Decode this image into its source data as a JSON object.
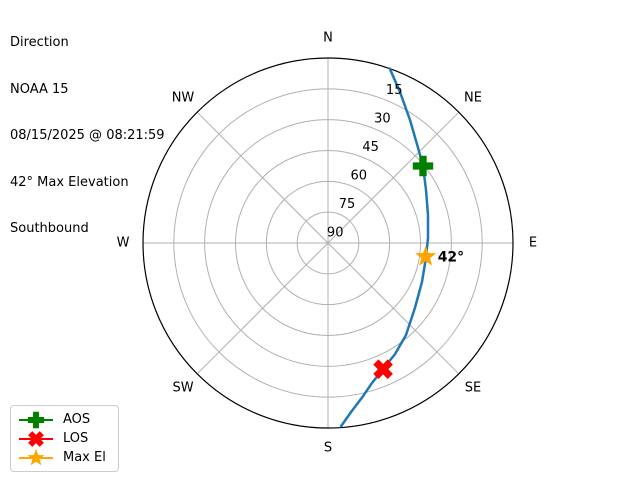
{
  "header": {
    "lines": [
      "Direction",
      "NOAA 15",
      "08/15/2025 @ 08:21:59",
      "42° Max Elevation",
      "Southbound"
    ]
  },
  "legend": {
    "items": [
      {
        "label": "AOS",
        "marker": "plus",
        "color": "#008000"
      },
      {
        "label": "LOS",
        "marker": "x",
        "color": "#ff0000"
      },
      {
        "label": "Max El",
        "marker": "star",
        "color": "#ffa500"
      }
    ]
  },
  "chart_data": {
    "type": "polar_sky_track",
    "title": "Direction",
    "satellite": "NOAA 15",
    "timestamp": "08/15/2025 @ 08:21:59",
    "max_elevation_deg": 42,
    "pass_heading": "Southbound",
    "max_el_annotation": "42°",
    "compass_labels": [
      "N",
      "NE",
      "E",
      "SE",
      "S",
      "SW",
      "W",
      "NW"
    ],
    "elevation_rings": [
      15,
      30,
      45,
      60,
      75,
      90
    ],
    "rlabel_azimuth_deg": 22.5,
    "grid_color": "#b0b0b0",
    "outline_color": "#000000",
    "track_color": "#1f77b4",
    "track": [
      {
        "az": 19.5,
        "el": 0.0
      },
      {
        "az": 25.5,
        "el": 8.6
      },
      {
        "az": 33.7,
        "el": 18.1
      },
      {
        "az": 43.5,
        "el": 26.3
      },
      {
        "az": 51.0,
        "el": 30.5
      },
      {
        "az": 61.6,
        "el": 35.8
      },
      {
        "az": 74.4,
        "el": 39.5
      },
      {
        "az": 87.1,
        "el": 41.3
      },
      {
        "az": 98.7,
        "el": 41.8
      },
      {
        "az": 112.5,
        "el": 40.5
      },
      {
        "az": 126.8,
        "el": 37.2
      },
      {
        "az": 139.7,
        "el": 31.3
      },
      {
        "az": 148.9,
        "el": 26.9
      },
      {
        "az": 156.4,
        "el": 23.1
      },
      {
        "az": 162.6,
        "el": 18.6
      },
      {
        "az": 167.1,
        "el": 13.6
      },
      {
        "az": 171.9,
        "el": 7.5
      },
      {
        "az": 175.9,
        "el": 0.7
      }
    ],
    "events": [
      {
        "name": "AOS",
        "marker": "plus",
        "color": "#008000",
        "az": 51.0,
        "el": 30.5
      },
      {
        "name": "Max El",
        "marker": "star",
        "color": "#ffa500",
        "az": 98.0,
        "el": 42.0,
        "annotation": "42°"
      },
      {
        "name": "LOS",
        "marker": "x",
        "color": "#ff0000",
        "az": 156.4,
        "el": 23.0
      }
    ]
  }
}
